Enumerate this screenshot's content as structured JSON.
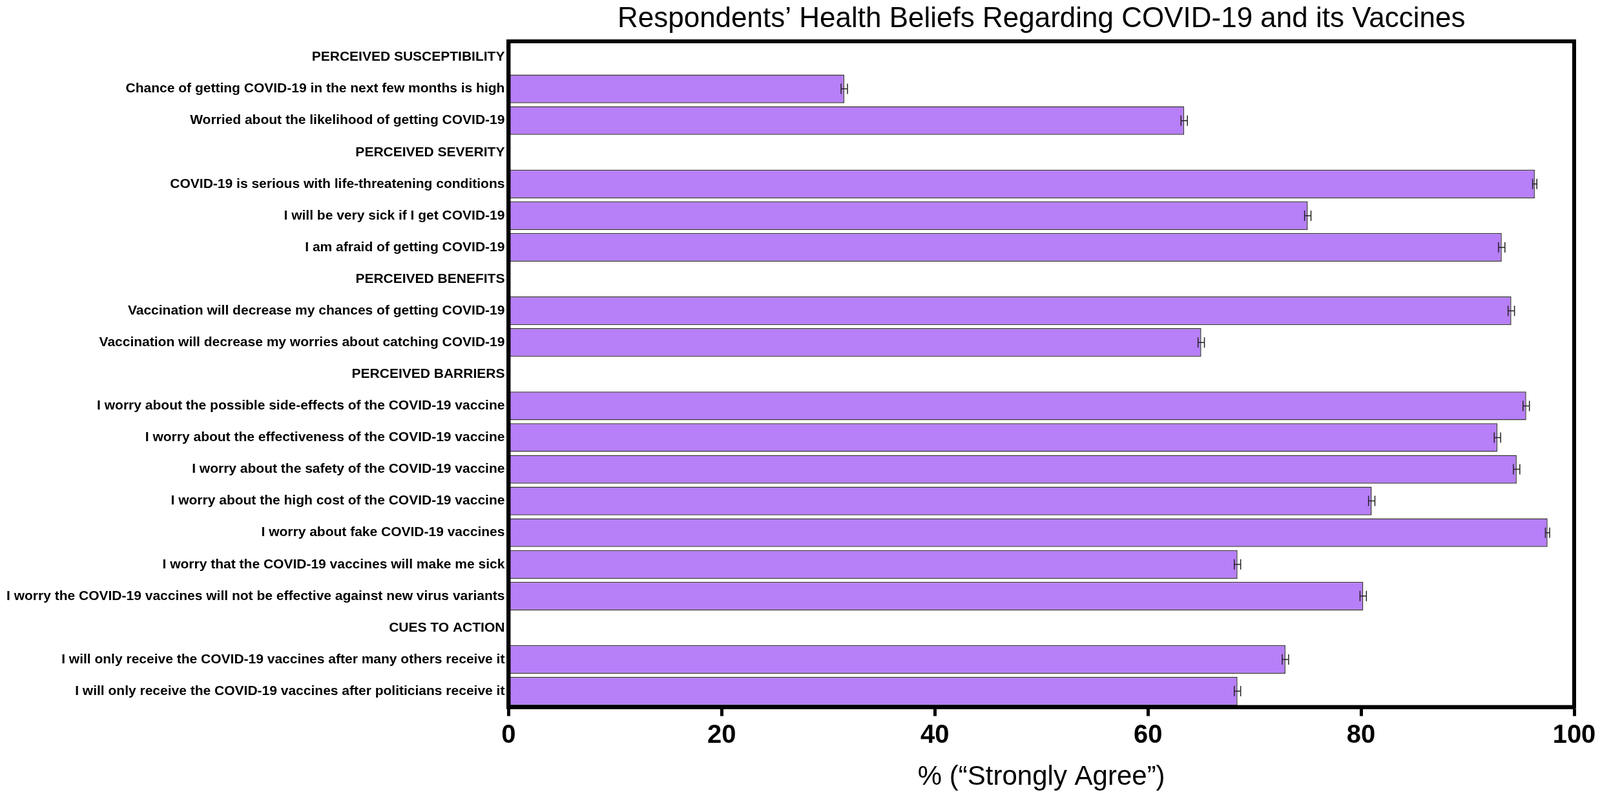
{
  "chart_data": {
    "type": "bar",
    "title": "Respondents’ Health Beliefs Regarding COVID-19 and its Vaccines",
    "x_label": "% (“Strongly Agree”)",
    "orientation": "horizontal",
    "categories": [
      "PERCEIVED SUSCEPTIBILITY",
      "Chance of getting COVID-19 in the next few months is high",
      "Worried about the likelihood of getting COVID-19",
      "PERCEIVED SEVERITY",
      "COVID-19 is serious with life-threatening conditions",
      "I will be very sick if I get COVID-19",
      "I am afraid of getting COVID-19",
      "PERCEIVED BENEFITS",
      "Vaccination will decrease my chances of getting COVID-19",
      "Vaccination will decrease my worries about catching COVID-19",
      "PERCEIVED BARRIERS",
      "I worry about the possible side-effects of the COVID-19 vaccine",
      "I worry about the effectiveness of the COVID-19 vaccine",
      "I worry about the safety of the COVID-19 vaccine",
      "I worry about the high cost of the COVID-19 vaccine",
      "I worry about fake COVID-19 vaccines",
      "I worry that the COVID-19 vaccines will make me sick",
      "I worry the COVID-19 vaccines will not be effective against new virus variants",
      "CUES TO ACTION",
      "I will only receive the COVID-19 vaccines after many others receive it",
      "I will only receive the COVID-19 vaccines after politicians receive it"
    ],
    "values": [
      null,
      31.5,
      63.4,
      null,
      96.3,
      75.0,
      93.2,
      null,
      94.1,
      65.0,
      null,
      95.5,
      92.8,
      94.6,
      81.0,
      97.5,
      68.4,
      80.2,
      null,
      72.9,
      68.4
    ],
    "errors": [
      null,
      0.3,
      0.3,
      null,
      0.2,
      0.3,
      0.3,
      null,
      0.3,
      0.3,
      null,
      0.3,
      0.3,
      0.3,
      0.3,
      0.2,
      0.3,
      0.3,
      null,
      0.3,
      0.3
    ],
    "color": "#b77ff8",
    "xlim": [
      0,
      100
    ],
    "xticks": [
      0,
      20,
      40,
      60,
      80,
      100
    ],
    "grid": false
  }
}
